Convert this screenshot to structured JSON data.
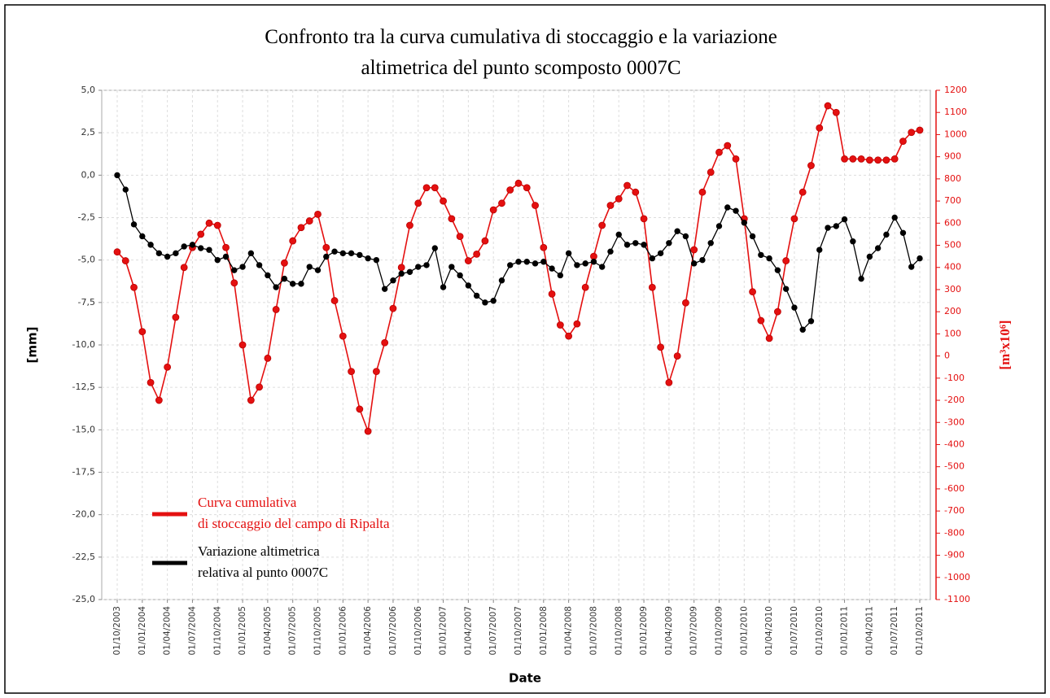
{
  "chart_data": {
    "type": "line",
    "title": "Confronto tra la curva cumulativa di stoccaggio e la variazione\naltimetrica del punto scomposto 0007C",
    "xlabel": "Date",
    "ylabel": "[mm]",
    "y2label": "[m³x10⁶]",
    "categories": [
      "01/10/2003",
      null,
      null,
      "01/01/2004",
      null,
      null,
      "01/04/2004",
      null,
      null,
      "01/07/2004",
      null,
      null,
      "01/10/2004",
      null,
      null,
      "01/01/2005",
      null,
      null,
      "01/04/2005",
      null,
      null,
      "01/07/2005",
      null,
      null,
      "01/10/2005",
      null,
      null,
      "01/01/2006",
      null,
      null,
      "01/04/2006",
      null,
      null,
      "01/07/2006",
      null,
      null,
      "01/10/2006",
      null,
      null,
      "01/01/2007",
      null,
      null,
      "01/04/2007",
      null,
      null,
      "01/07/2007",
      null,
      null,
      "01/10/2007",
      null,
      null,
      "01/01/2008",
      null,
      null,
      "01/04/2008",
      null,
      null,
      "01/07/2008",
      null,
      null,
      "01/10/2008",
      null,
      null,
      "01/01/2009",
      null,
      null,
      "01/04/2009",
      null,
      null,
      "01/07/2009",
      null,
      null,
      "01/10/2009",
      null,
      null,
      "01/01/2010",
      null,
      null,
      "01/04/2010",
      null,
      null,
      "01/07/2010",
      null,
      null,
      "01/10/2010",
      null,
      null,
      "01/01/2011",
      null,
      null,
      "01/04/2011",
      null,
      null,
      "01/07/2011",
      null,
      null,
      "01/10/2011"
    ],
    "series": [
      {
        "name": "Curva cumulativa\ndi stoccaggio del campo di Ripalta",
        "color": "#e41010",
        "axis": "y2",
        "values": [
          470,
          430,
          310,
          110,
          -120,
          -200,
          -50,
          175,
          400,
          490,
          550,
          600,
          590,
          490,
          330,
          50,
          -200,
          -140,
          -10,
          210,
          420,
          520,
          580,
          610,
          640,
          490,
          250,
          90,
          -70,
          -240,
          -340,
          -70,
          60,
          215,
          400,
          590,
          690,
          760,
          760,
          700,
          620,
          540,
          430,
          460,
          520,
          660,
          690,
          750,
          780,
          760,
          680,
          490,
          280,
          140,
          90,
          145,
          310,
          450,
          590,
          680,
          710,
          770,
          740,
          620,
          310,
          40,
          -120,
          0,
          240,
          480,
          740,
          830,
          920,
          950,
          890,
          620,
          290,
          160,
          80,
          200,
          430,
          620,
          740,
          860,
          1030,
          1130,
          1100,
          890,
          890,
          890,
          885,
          885,
          885,
          890,
          970,
          1010,
          1020
        ]
      },
      {
        "name": "Variazione altimetrica\nrelativa al punto 0007C",
        "color": "#000000",
        "values": [
          0,
          -0.85,
          -2.9,
          -3.6,
          -4.1,
          -4.6,
          -4.8,
          -4.6,
          -4.2,
          -4.1,
          -4.3,
          -4.4,
          -5.0,
          -4.8,
          -5.6,
          -5.4,
          -4.6,
          -5.3,
          -5.9,
          -6.6,
          -6.1,
          -6.4,
          -6.4,
          -5.4,
          -5.6,
          -4.8,
          -4.5,
          -4.6,
          -4.6,
          -4.7,
          -4.9,
          -5.0,
          -6.7,
          -6.2,
          -5.8,
          -5.7,
          -5.4,
          -5.3,
          -4.3,
          -6.6,
          -5.4,
          -5.9,
          -6.5,
          -7.1,
          -7.5,
          -7.4,
          -6.2,
          -5.3,
          -5.1,
          -5.1,
          -5.2,
          -5.1,
          -5.5,
          -5.9,
          -4.6,
          -5.3,
          -5.2,
          -5.1,
          -5.4,
          -4.5,
          -3.5,
          -4.1,
          -4.0,
          -4.1,
          -4.9,
          -4.6,
          -4.0,
          -3.3,
          -3.6,
          -5.2,
          -5.0,
          -4.0,
          -3.0,
          -1.9,
          -2.1,
          -2.8,
          -3.6,
          -4.7,
          -4.9,
          -5.6,
          -6.7,
          -7.8,
          -9.1,
          -8.6,
          -4.4,
          -3.1,
          -3.0,
          -2.6,
          -3.9,
          -6.1,
          -4.8,
          -4.3,
          -3.5,
          -2.5,
          -3.4,
          -5.4,
          -4.9
        ]
      }
    ],
    "ylim": [
      -25,
      5
    ],
    "yticks": [
      {
        "value": 5,
        "label": "5,0"
      },
      {
        "value": 2.5,
        "label": "2,5"
      },
      {
        "value": 0,
        "label": "0,0"
      },
      {
        "value": -2.5,
        "label": "-2,5"
      },
      {
        "value": -5,
        "label": "-5,0"
      },
      {
        "value": -7.5,
        "label": "-7,5"
      },
      {
        "value": -10,
        "label": "-10,0"
      },
      {
        "value": -12.5,
        "label": "-12,5"
      },
      {
        "value": -15,
        "label": "-15,0"
      },
      {
        "value": -17.5,
        "label": "-17,5"
      },
      {
        "value": -20,
        "label": "-20,0"
      },
      {
        "value": -22.5,
        "label": "-22,5"
      },
      {
        "value": -25,
        "label": "-25,0"
      }
    ],
    "y2lim": [
      -1100,
      1200
    ],
    "y2ticks": [
      1200,
      1100,
      1000,
      900,
      800,
      700,
      600,
      500,
      400,
      300,
      200,
      100,
      0,
      -100,
      -200,
      -300,
      -400,
      -500,
      -600,
      -700,
      -800,
      -900,
      -1000,
      -1100
    ],
    "grid": true,
    "legend": "lower left"
  }
}
